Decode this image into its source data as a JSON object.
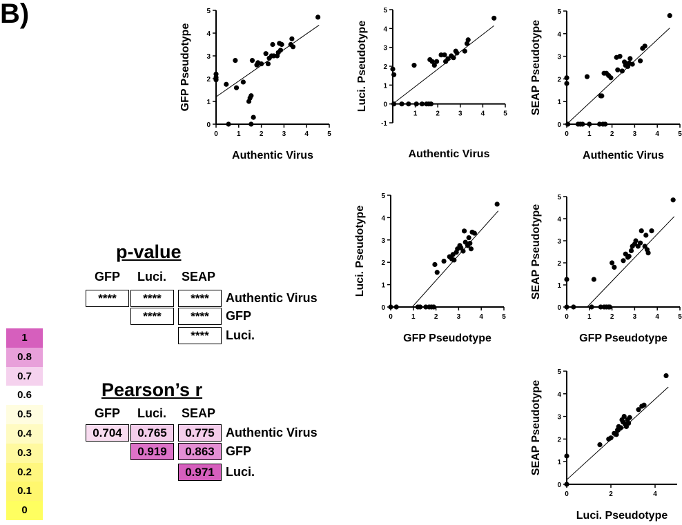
{
  "panel_label": "B)",
  "colors": {
    "points": "#000000",
    "heat_high": "#d65fbd",
    "heat_low": "#ffff66"
  },
  "chart_data": [
    {
      "type": "scatter",
      "xlabel": "Authentic Virus",
      "ylabel": "GFP Pseudotype",
      "xlim": [
        0,
        5
      ],
      "ylim": [
        0,
        5
      ],
      "xticks": [
        "0",
        "1",
        "2",
        "3",
        "4",
        "5"
      ],
      "yticks": [
        "0",
        "1",
        "2",
        "3",
        "4",
        "5"
      ],
      "fit": [
        [
          0,
          1.2
        ],
        [
          4.55,
          4.35
        ]
      ],
      "points": [
        [
          0,
          2.2
        ],
        [
          0,
          2.05
        ],
        [
          0,
          1.95
        ],
        [
          0.45,
          1.75
        ],
        [
          0.55,
          0
        ],
        [
          0.85,
          2.8
        ],
        [
          0.9,
          1.6
        ],
        [
          1.2,
          1.85
        ],
        [
          1.45,
          1.0
        ],
        [
          1.5,
          1.15
        ],
        [
          1.55,
          1.25
        ],
        [
          1.55,
          0
        ],
        [
          1.6,
          2.8
        ],
        [
          1.65,
          0.3
        ],
        [
          1.8,
          2.6
        ],
        [
          1.85,
          2.7
        ],
        [
          2.0,
          2.65
        ],
        [
          2.2,
          3.1
        ],
        [
          2.3,
          2.65
        ],
        [
          2.35,
          2.9
        ],
        [
          2.45,
          3.0
        ],
        [
          2.5,
          3.5
        ],
        [
          2.55,
          3.0
        ],
        [
          2.7,
          3.0
        ],
        [
          2.75,
          3.15
        ],
        [
          2.8,
          3.55
        ],
        [
          2.85,
          3.25
        ],
        [
          2.9,
          3.5
        ],
        [
          3.3,
          3.5
        ],
        [
          3.35,
          3.75
        ],
        [
          3.4,
          3.4
        ],
        [
          4.5,
          4.7
        ]
      ]
    },
    {
      "type": "scatter",
      "xlabel": "Authentic Virus",
      "ylabel": "Luci. Pseudotype",
      "xlim": [
        0,
        5
      ],
      "ylim": [
        -1,
        5
      ],
      "xticks": [
        "1",
        "2",
        "3",
        "4",
        "5"
      ],
      "yticks": [
        "-1",
        "0",
        "1",
        "2",
        "3",
        "4",
        "5"
      ],
      "fit": [
        [
          0,
          0
        ],
        [
          4.5,
          4.15
        ]
      ],
      "points": [
        [
          0,
          1.85
        ],
        [
          0.05,
          1.55
        ],
        [
          0.05,
          0
        ],
        [
          0.4,
          0
        ],
        [
          0.7,
          0
        ],
        [
          0.95,
          2.05
        ],
        [
          1.05,
          0
        ],
        [
          1.3,
          0
        ],
        [
          1.5,
          0
        ],
        [
          1.6,
          0
        ],
        [
          1.7,
          0
        ],
        [
          1.65,
          2.35
        ],
        [
          1.75,
          2.25
        ],
        [
          1.85,
          2.05
        ],
        [
          1.95,
          2.25
        ],
        [
          2.15,
          2.6
        ],
        [
          2.3,
          2.6
        ],
        [
          2.35,
          2.25
        ],
        [
          2.45,
          2.4
        ],
        [
          2.6,
          2.55
        ],
        [
          2.7,
          2.45
        ],
        [
          2.8,
          2.8
        ],
        [
          2.85,
          2.7
        ],
        [
          3.3,
          3.2
        ],
        [
          3.35,
          3.4
        ],
        [
          3.2,
          2.8
        ],
        [
          4.5,
          4.55
        ]
      ]
    },
    {
      "type": "scatter",
      "xlabel": "Authentic Virus",
      "ylabel": "SEAP Pseudotype",
      "xlim": [
        0,
        5
      ],
      "ylim": [
        0,
        5
      ],
      "xticks": [
        "0",
        "1",
        "2",
        "3",
        "4",
        "5"
      ],
      "yticks": [
        "0",
        "1",
        "2",
        "3",
        "4",
        "5"
      ],
      "fit": [
        [
          0,
          0
        ],
        [
          4.55,
          4.25
        ]
      ],
      "points": [
        [
          0,
          2.05
        ],
        [
          0,
          1.8
        ],
        [
          0.05,
          0
        ],
        [
          0.5,
          0
        ],
        [
          0.6,
          0
        ],
        [
          0.7,
          0
        ],
        [
          0.9,
          2.1
        ],
        [
          1.0,
          0
        ],
        [
          1.45,
          0
        ],
        [
          1.5,
          1.25
        ],
        [
          1.55,
          1.25
        ],
        [
          1.6,
          0
        ],
        [
          1.7,
          0
        ],
        [
          1.65,
          2.25
        ],
        [
          1.75,
          2.25
        ],
        [
          1.85,
          2.15
        ],
        [
          1.95,
          2.05
        ],
        [
          2.2,
          2.95
        ],
        [
          2.25,
          2.4
        ],
        [
          2.35,
          3.0
        ],
        [
          2.45,
          2.35
        ],
        [
          2.55,
          2.75
        ],
        [
          2.6,
          2.6
        ],
        [
          2.7,
          2.55
        ],
        [
          2.75,
          2.7
        ],
        [
          2.8,
          2.9
        ],
        [
          2.9,
          2.65
        ],
        [
          3.25,
          2.8
        ],
        [
          3.35,
          3.35
        ],
        [
          3.45,
          3.45
        ],
        [
          4.55,
          4.8
        ]
      ]
    },
    {
      "type": "scatter",
      "xlabel": "GFP Pseudotype",
      "ylabel": "Luci. Pseudotype",
      "xlim": [
        0,
        5
      ],
      "ylim": [
        0,
        5
      ],
      "xticks": [
        "0",
        "1",
        "2",
        "3",
        "4",
        "5"
      ],
      "yticks": [
        "0",
        "1",
        "2",
        "3",
        "4",
        "5"
      ],
      "fit": [
        [
          0.95,
          0
        ],
        [
          4.75,
          4.3
        ]
      ],
      "points": [
        [
          0,
          0
        ],
        [
          0.25,
          0
        ],
        [
          1.2,
          0
        ],
        [
          1.3,
          0
        ],
        [
          1.55,
          0
        ],
        [
          1.7,
          0
        ],
        [
          1.8,
          0
        ],
        [
          1.9,
          0
        ],
        [
          1.95,
          1.9
        ],
        [
          2.05,
          1.55
        ],
        [
          2.35,
          2.05
        ],
        [
          2.6,
          2.25
        ],
        [
          2.7,
          2.15
        ],
        [
          2.75,
          2.35
        ],
        [
          2.8,
          2.1
        ],
        [
          2.9,
          2.45
        ],
        [
          2.95,
          2.6
        ],
        [
          3.05,
          2.75
        ],
        [
          3.1,
          2.65
        ],
        [
          3.2,
          2.5
        ],
        [
          3.25,
          3.4
        ],
        [
          3.3,
          2.9
        ],
        [
          3.4,
          2.75
        ],
        [
          3.45,
          3.1
        ],
        [
          3.5,
          2.85
        ],
        [
          3.55,
          2.6
        ],
        [
          3.6,
          3.35
        ],
        [
          3.7,
          3.3
        ],
        [
          4.7,
          4.6
        ]
      ]
    },
    {
      "type": "scatter",
      "xlabel": "GFP Pseudotype",
      "ylabel": "SEAP Pseudotype",
      "xlim": [
        0,
        5
      ],
      "ylim": [
        0,
        5
      ],
      "xticks": [
        "0",
        "1",
        "2",
        "3",
        "4",
        "5"
      ],
      "yticks": [
        "0",
        "1",
        "2",
        "3",
        "4",
        "5"
      ],
      "fit": [
        [
          0.9,
          0
        ],
        [
          4.75,
          4.1
        ]
      ],
      "points": [
        [
          0,
          1.25
        ],
        [
          0,
          0
        ],
        [
          0.3,
          0
        ],
        [
          1.1,
          0
        ],
        [
          1.2,
          1.25
        ],
        [
          1.5,
          0
        ],
        [
          1.65,
          0
        ],
        [
          1.75,
          0
        ],
        [
          1.85,
          0
        ],
        [
          1.9,
          0
        ],
        [
          2.0,
          2.0
        ],
        [
          2.1,
          1.8
        ],
        [
          2.5,
          2.1
        ],
        [
          2.6,
          2.4
        ],
        [
          2.7,
          2.25
        ],
        [
          2.75,
          2.3
        ],
        [
          2.85,
          2.55
        ],
        [
          2.9,
          2.75
        ],
        [
          3.0,
          2.85
        ],
        [
          3.05,
          3.0
        ],
        [
          3.15,
          2.75
        ],
        [
          3.25,
          2.9
        ],
        [
          3.3,
          3.45
        ],
        [
          3.45,
          2.75
        ],
        [
          3.5,
          3.25
        ],
        [
          3.55,
          2.6
        ],
        [
          3.6,
          2.45
        ],
        [
          3.75,
          3.45
        ],
        [
          4.7,
          4.85
        ]
      ]
    },
    {
      "type": "scatter",
      "xlabel": "Luci. Pseudotype",
      "ylabel": "SEAP Pseudotype",
      "xlim": [
        0,
        5
      ],
      "ylim": [
        0,
        5
      ],
      "xticks": [
        "0",
        "2",
        "4"
      ],
      "yticks": [
        "0",
        "1",
        "2",
        "3",
        "4",
        "5"
      ],
      "fit": [
        [
          0,
          0.2
        ],
        [
          4.6,
          4.3
        ]
      ],
      "points": [
        [
          0,
          1.25
        ],
        [
          0,
          0
        ],
        [
          1.5,
          1.75
        ],
        [
          1.9,
          2.0
        ],
        [
          2.0,
          2.05
        ],
        [
          2.15,
          2.25
        ],
        [
          2.25,
          2.2
        ],
        [
          2.3,
          2.4
        ],
        [
          2.35,
          2.55
        ],
        [
          2.45,
          2.5
        ],
        [
          2.5,
          2.85
        ],
        [
          2.55,
          2.75
        ],
        [
          2.6,
          3.0
        ],
        [
          2.65,
          2.65
        ],
        [
          2.7,
          2.55
        ],
        [
          2.75,
          2.85
        ],
        [
          2.8,
          2.7
        ],
        [
          2.85,
          2.95
        ],
        [
          3.25,
          3.3
        ],
        [
          3.4,
          3.45
        ],
        [
          3.5,
          3.5
        ],
        [
          4.5,
          4.8
        ]
      ]
    },
    {
      "type": "table",
      "title": "p-value",
      "columns": [
        "GFP",
        "Luci.",
        "SEAP"
      ],
      "rows": [
        {
          "label": "Authentic Virus",
          "cells": [
            "****",
            "****",
            "****"
          ]
        },
        {
          "label": "GFP",
          "cells": [
            "",
            "****",
            "****"
          ]
        },
        {
          "label": "Luci.",
          "cells": [
            "",
            "",
            "****"
          ]
        }
      ]
    },
    {
      "type": "heatmap",
      "title": "Pearson’s r",
      "columns": [
        "GFP",
        "Luci.",
        "SEAP"
      ],
      "rows": [
        {
          "label": "Authentic Virus",
          "cells": [
            "0.704",
            "0.765",
            "0.775"
          ],
          "values": [
            0.704,
            0.765,
            0.775
          ]
        },
        {
          "label": "GFP",
          "cells": [
            "",
            "0.919",
            "0.863"
          ],
          "values": [
            null,
            0.919,
            0.863
          ]
        },
        {
          "label": "Luci.",
          "cells": [
            "",
            "",
            "0.971"
          ],
          "values": [
            null,
            null,
            0.971
          ]
        }
      ],
      "color_scale": [
        "1",
        "0.8",
        "0.7",
        "0.6",
        "0.5",
        "0.4",
        "0.3",
        "0.2",
        "0.1",
        "0"
      ],
      "color_scale_colors": [
        "#d65fbd",
        "#e8a0da",
        "#f5d2ee",
        "#ffffff",
        "#fffde0",
        "#fffbc2",
        "#fff99f",
        "#fff77f",
        "#fff76e",
        "#ffff60"
      ]
    }
  ]
}
